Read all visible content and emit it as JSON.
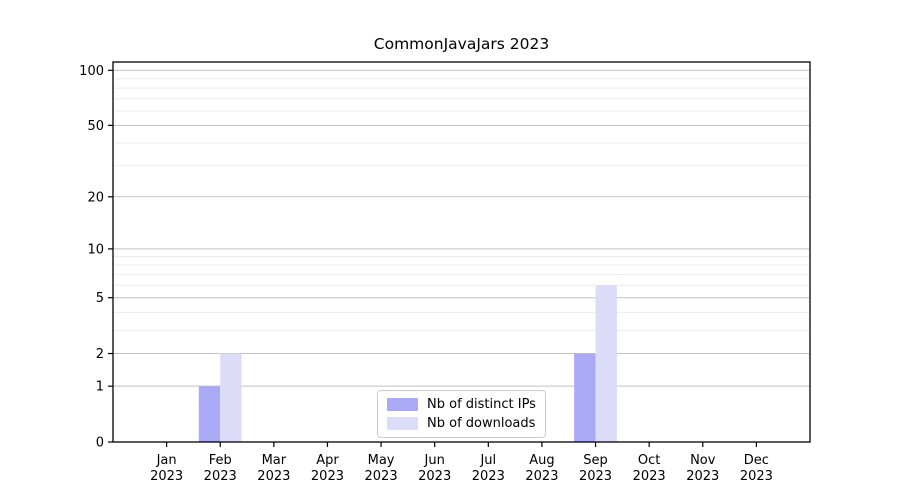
{
  "chart_data": {
    "type": "bar",
    "title": "CommonJavaJars 2023",
    "xlabel": "",
    "ylabel": "",
    "yscale": "log1p",
    "ylim": [
      0,
      111
    ],
    "grid": true,
    "legend_position": "lower center",
    "y_ticks": [
      0,
      1,
      2,
      5,
      10,
      20,
      50,
      100
    ],
    "y_minor_ticks": [
      3,
      4,
      6,
      7,
      8,
      9,
      30,
      40,
      60,
      70,
      80,
      90
    ],
    "categories": [
      {
        "month": "Jan",
        "year": "2023"
      },
      {
        "month": "Feb",
        "year": "2023"
      },
      {
        "month": "Mar",
        "year": "2023"
      },
      {
        "month": "Apr",
        "year": "2023"
      },
      {
        "month": "May",
        "year": "2023"
      },
      {
        "month": "Jun",
        "year": "2023"
      },
      {
        "month": "Jul",
        "year": "2023"
      },
      {
        "month": "Aug",
        "year": "2023"
      },
      {
        "month": "Sep",
        "year": "2023"
      },
      {
        "month": "Oct",
        "year": "2023"
      },
      {
        "month": "Nov",
        "year": "2023"
      },
      {
        "month": "Dec",
        "year": "2023"
      }
    ],
    "series": [
      {
        "name": "Nb of distinct IPs",
        "color": "#a9a9f5",
        "values": [
          0,
          1,
          0,
          0,
          0,
          0,
          0,
          0,
          2,
          0,
          0,
          0
        ]
      },
      {
        "name": "Nb of downloads",
        "color": "#dcdcf8",
        "values": [
          0,
          2,
          0,
          0,
          0,
          0,
          0,
          0,
          6,
          0,
          0,
          0
        ]
      }
    ],
    "colors": {
      "axis": "#000000",
      "tick_label": "#000000",
      "grid_major": "#c3c3c3",
      "grid_minor": "#ececec",
      "legend_border": "#cccccc",
      "background": "#ffffff"
    }
  }
}
